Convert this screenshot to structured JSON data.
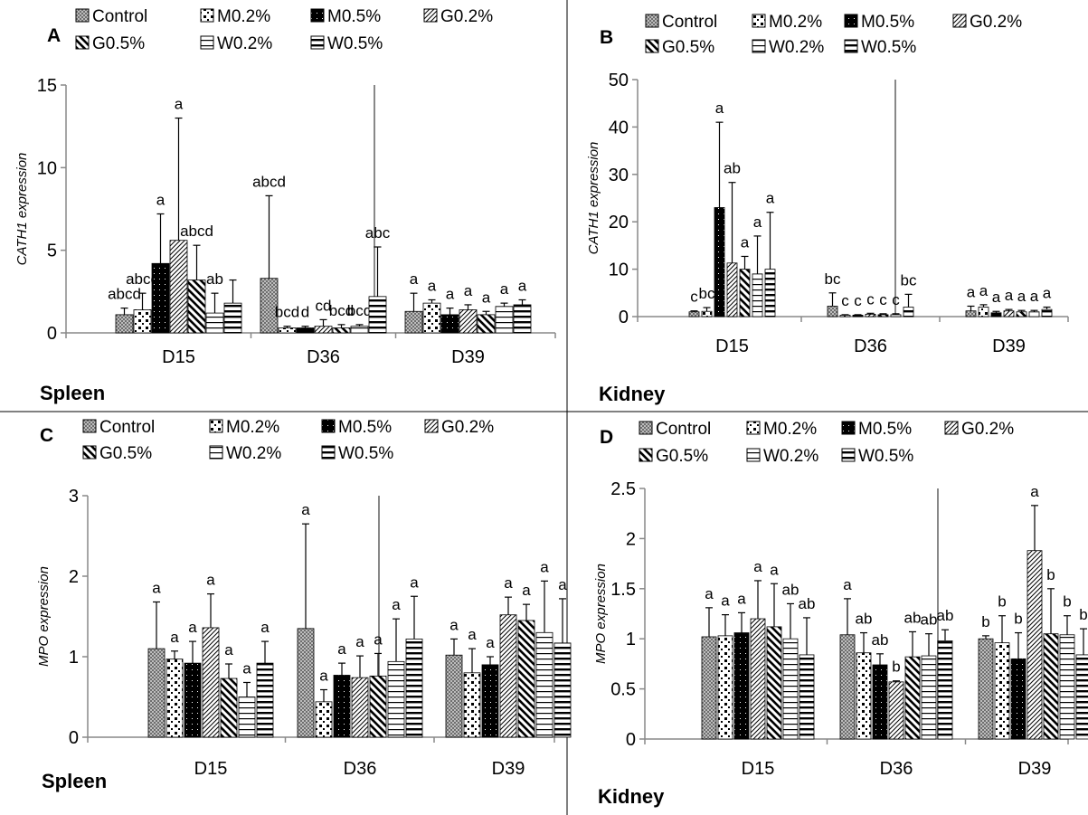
{
  "chart_data": [
    {
      "type": "bar",
      "panel_letter": "A",
      "tissue": "Spleen",
      "ylabel": "CATH1 expression",
      "ylim": [
        0,
        15
      ],
      "yticks": [
        "0",
        "5",
        "10",
        "15"
      ],
      "categories": [
        "D15",
        "D36",
        "D39"
      ],
      "series": [
        {
          "name": "Control",
          "values": [
            1.1,
            3.3,
            1.3
          ],
          "errors": [
            0.4,
            5.0,
            1.1
          ],
          "letters": [
            "abcd",
            "abcd",
            "a"
          ]
        },
        {
          "name": "M0.2%",
          "values": [
            1.4,
            0.3,
            1.8
          ],
          "errors": [
            1.0,
            0.1,
            0.2
          ],
          "letters": [
            "abcd",
            "bcd",
            "a"
          ]
        },
        {
          "name": "M0.5%",
          "values": [
            4.2,
            0.3,
            1.1
          ],
          "errors": [
            3.0,
            0.1,
            0.4
          ],
          "letters": [
            "a",
            "d",
            "a"
          ]
        },
        {
          "name": "G0.2%",
          "values": [
            5.6,
            0.4,
            1.4
          ],
          "errors": [
            7.4,
            0.4,
            0.3
          ],
          "letters": [
            "a",
            "cd",
            "a"
          ]
        },
        {
          "name": "G0.5%",
          "values": [
            3.2,
            0.3,
            1.1
          ],
          "errors": [
            2.1,
            0.2,
            0.2
          ],
          "letters": [
            "abcd",
            "bcd",
            "a"
          ]
        },
        {
          "name": "W0.2%",
          "values": [
            1.2,
            0.4,
            1.6
          ],
          "errors": [
            1.2,
            0.1,
            0.2
          ],
          "letters": [
            "ab",
            "bcd",
            "a"
          ]
        },
        {
          "name": "W0.5%",
          "values": [
            1.8,
            2.2,
            1.7
          ],
          "errors": [
            1.4,
            3.0,
            0.3
          ],
          "letters": [
            "",
            "abc",
            "a"
          ]
        }
      ]
    },
    {
      "type": "bar",
      "panel_letter": "B",
      "tissue": "Kidney",
      "ylabel": "CATH1 expression",
      "ylim": [
        0,
        50
      ],
      "yticks": [
        "0",
        "10",
        "20",
        "30",
        "40",
        "50"
      ],
      "categories": [
        "D15",
        "D36",
        "D39"
      ],
      "series": [
        {
          "name": "Control",
          "values": [
            1.0,
            2.2,
            1.2
          ],
          "errors": [
            0.2,
            2.8,
            1.0
          ],
          "letters": [
            "c",
            "bc",
            "a"
          ]
        },
        {
          "name": "M0.2%",
          "values": [
            1.1,
            0.3,
            2.0
          ],
          "errors": [
            0.8,
            0.1,
            0.5
          ],
          "letters": [
            "bc",
            "c",
            "a"
          ]
        },
        {
          "name": "M0.5%",
          "values": [
            23.0,
            0.3,
            0.8
          ],
          "errors": [
            18.0,
            0.1,
            0.3
          ],
          "letters": [
            "a",
            "c",
            "a"
          ]
        },
        {
          "name": "G0.2%",
          "values": [
            11.3,
            0.5,
            1.2
          ],
          "errors": [
            17.0,
            0.2,
            0.3
          ],
          "letters": [
            "ab",
            "c",
            "a"
          ]
        },
        {
          "name": "G0.5%",
          "values": [
            10.0,
            0.4,
            1.0
          ],
          "errors": [
            2.7,
            0.2,
            0.3
          ],
          "letters": [
            "a",
            "c",
            "a"
          ]
        },
        {
          "name": "W0.2%",
          "values": [
            9.0,
            0.4,
            1.0
          ],
          "errors": [
            8.0,
            0.2,
            0.3
          ],
          "letters": [
            "a",
            "c",
            "a"
          ]
        },
        {
          "name": "W0.5%",
          "values": [
            10.0,
            2.0,
            1.5
          ],
          "errors": [
            12.0,
            2.7,
            0.5
          ],
          "letters": [
            "a",
            "bc",
            "a"
          ]
        }
      ]
    },
    {
      "type": "bar",
      "panel_letter": "C",
      "tissue": "Spleen",
      "ylabel": "MPO expression",
      "ylim": [
        0,
        3
      ],
      "yticks": [
        "0",
        "1",
        "2",
        "3"
      ],
      "categories": [
        "D15",
        "D36",
        "D39"
      ],
      "series": [
        {
          "name": "Control",
          "values": [
            1.1,
            1.35,
            1.02
          ],
          "errors": [
            0.58,
            1.3,
            0.2
          ],
          "letters": [
            "a",
            "a",
            "a"
          ]
        },
        {
          "name": "M0.2%",
          "values": [
            0.97,
            0.44,
            0.8
          ],
          "errors": [
            0.1,
            0.15,
            0.3
          ],
          "letters": [
            "a",
            "a",
            "a"
          ]
        },
        {
          "name": "M0.5%",
          "values": [
            0.92,
            0.77,
            0.9
          ],
          "errors": [
            0.27,
            0.15,
            0.1
          ],
          "letters": [
            "a",
            "a",
            "a"
          ]
        },
        {
          "name": "G0.2%",
          "values": [
            1.36,
            0.74,
            1.52
          ],
          "errors": [
            0.42,
            0.27,
            0.22
          ],
          "letters": [
            "a",
            "a",
            "a"
          ]
        },
        {
          "name": "G0.5%",
          "values": [
            0.73,
            0.76,
            1.45
          ],
          "errors": [
            0.18,
            0.28,
            0.2
          ],
          "letters": [
            "a",
            "a",
            "a"
          ]
        },
        {
          "name": "W0.2%",
          "values": [
            0.5,
            0.94,
            1.3
          ],
          "errors": [
            0.18,
            0.53,
            0.64
          ],
          "letters": [
            "a",
            "a",
            "a"
          ]
        },
        {
          "name": "W0.5%",
          "values": [
            0.92,
            1.22,
            1.17
          ],
          "errors": [
            0.27,
            0.53,
            0.55
          ],
          "letters": [
            "a",
            "a",
            "a"
          ]
        }
      ]
    },
    {
      "type": "bar",
      "panel_letter": "D",
      "tissue": "Kidney",
      "ylabel": "MPO expression",
      "ylim": [
        0,
        2.5
      ],
      "yticks": [
        "0",
        "0.5",
        "1",
        "1.5",
        "2",
        "2.5"
      ],
      "categories": [
        "D15",
        "D36",
        "D39"
      ],
      "series": [
        {
          "name": "Control",
          "values": [
            1.02,
            1.04,
            1.0
          ],
          "errors": [
            0.29,
            0.36,
            0.03
          ],
          "letters": [
            "a",
            "a",
            "b"
          ]
        },
        {
          "name": "M0.2%",
          "values": [
            1.03,
            0.86,
            0.96
          ],
          "errors": [
            0.21,
            0.2,
            0.27
          ],
          "letters": [
            "a",
            "ab",
            "b"
          ]
        },
        {
          "name": "M0.5%",
          "values": [
            1.06,
            0.74,
            0.8
          ],
          "errors": [
            0.2,
            0.11,
            0.26
          ],
          "letters": [
            "a",
            "ab",
            "b"
          ]
        },
        {
          "name": "G0.2%",
          "values": [
            1.2,
            0.57,
            1.88
          ],
          "errors": [
            0.38,
            0.01,
            0.45
          ],
          "letters": [
            "a",
            "b",
            "a"
          ]
        },
        {
          "name": "G0.5%",
          "values": [
            1.12,
            0.82,
            1.05
          ],
          "errors": [
            0.43,
            0.25,
            0.45
          ],
          "letters": [
            "a",
            "ab",
            "b"
          ]
        },
        {
          "name": "W0.2%",
          "values": [
            1.0,
            0.83,
            1.04
          ],
          "errors": [
            0.35,
            0.22,
            0.19
          ],
          "letters": [
            "ab",
            "ab",
            "b"
          ]
        },
        {
          "name": "W0.5%",
          "values": [
            0.84,
            0.98,
            0.84
          ],
          "errors": [
            0.37,
            0.11,
            0.26
          ],
          "letters": [
            "ab",
            "ab",
            "b"
          ]
        }
      ]
    }
  ]
}
